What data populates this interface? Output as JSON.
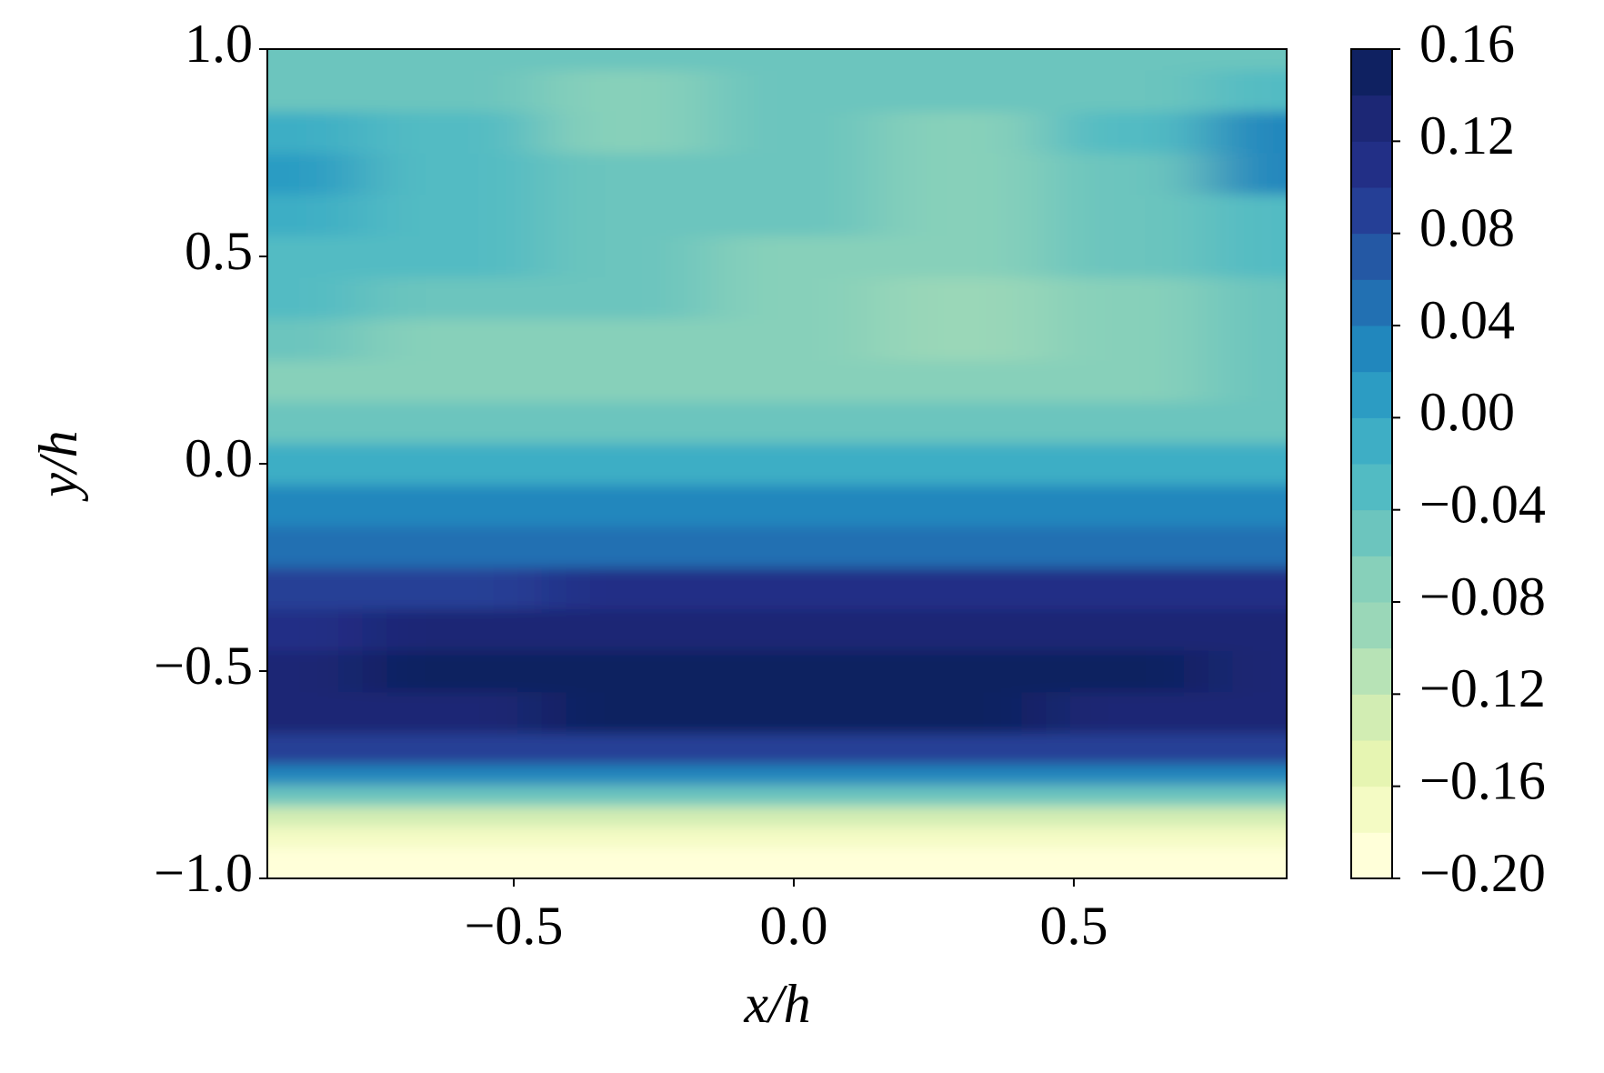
{
  "chart_data": {
    "type": "contourf",
    "xlabel": "x/h",
    "ylabel": "y/h",
    "xlim": [
      -0.94,
      0.88
    ],
    "ylim": [
      -1,
      1
    ],
    "xticks": [
      {
        "value": -0.5,
        "label": "−0.5"
      },
      {
        "value": 0,
        "label": "0.0"
      },
      0.5
    ],
    "yticks": [
      {
        "value": -1,
        "label": "−1.0"
      },
      {
        "value": -0.5,
        "label": "−0.5"
      },
      {
        "value": 0,
        "label": "0.0"
      },
      0.5,
      {
        "value": 1,
        "label": "1.0"
      }
    ],
    "x": [
      -0.94,
      -0.6,
      -0.3,
      0,
      0.3,
      0.6,
      0.88
    ],
    "y": [
      -1,
      -0.95,
      -0.9,
      -0.85,
      -0.8,
      -0.75,
      -0.7,
      -0.6,
      -0.5,
      -0.4,
      -0.3,
      -0.2,
      -0.1,
      0,
      0.1,
      0.2,
      0.3,
      0.4,
      0.5,
      0.6,
      0.7,
      0.8,
      0.9,
      1
    ],
    "z": [
      [
        -0.19,
        -0.19,
        -0.19,
        -0.19,
        -0.19,
        -0.19,
        -0.19
      ],
      [
        -0.19,
        -0.19,
        -0.19,
        -0.19,
        -0.19,
        -0.19,
        -0.19
      ],
      [
        -0.17,
        -0.17,
        -0.17,
        -0.17,
        -0.17,
        -0.17,
        -0.17
      ],
      [
        -0.13,
        -0.13,
        -0.13,
        -0.13,
        -0.13,
        -0.13,
        -0.13
      ],
      [
        -0.06,
        -0.06,
        -0.06,
        -0.06,
        -0.06,
        -0.06,
        -0.06
      ],
      [
        0.02,
        0.02,
        0.02,
        0.02,
        0.02,
        0.02,
        0.02
      ],
      [
        0.09,
        0.09,
        0.09,
        0.09,
        0.09,
        0.09,
        0.09
      ],
      [
        0.13,
        0.13,
        0.14,
        0.14,
        0.14,
        0.13,
        0.13
      ],
      [
        0.13,
        0.14,
        0.15,
        0.15,
        0.15,
        0.14,
        0.13
      ],
      [
        0.11,
        0.12,
        0.12,
        0.13,
        0.13,
        0.13,
        0.12
      ],
      [
        0.09,
        0.09,
        0.1,
        0.1,
        0.1,
        0.1,
        0.1
      ],
      [
        0.05,
        0.05,
        0.05,
        0.05,
        0.05,
        0.05,
        0.05
      ],
      [
        0.02,
        0.02,
        0.02,
        0.02,
        0.02,
        0.02,
        0.02
      ],
      [
        -0.02,
        -0.02,
        -0.02,
        -0.02,
        -0.02,
        -0.02,
        -0.02
      ],
      [
        -0.05,
        -0.05,
        -0.05,
        -0.05,
        -0.05,
        -0.05,
        -0.05
      ],
      [
        -0.07,
        -0.075,
        -0.075,
        -0.07,
        -0.07,
        -0.065,
        -0.06
      ],
      [
        -0.06,
        -0.07,
        -0.07,
        -0.08,
        -0.09,
        -0.08,
        -0.06
      ],
      [
        -0.04,
        -0.05,
        -0.06,
        -0.08,
        -0.09,
        -0.07,
        -0.05
      ],
      [
        -0.03,
        -0.04,
        -0.06,
        -0.07,
        -0.08,
        -0.06,
        -0.04
      ],
      [
        -0.02,
        -0.03,
        -0.06,
        -0.06,
        -0.07,
        -0.06,
        -0.03
      ],
      [
        0.01,
        -0.03,
        -0.06,
        -0.06,
        -0.07,
        -0.05,
        0.02
      ],
      [
        -0.01,
        -0.04,
        -0.07,
        -0.06,
        -0.07,
        -0.03,
        0.02
      ],
      [
        -0.05,
        -0.06,
        -0.07,
        -0.06,
        -0.06,
        -0.05,
        -0.03
      ],
      [
        -0.05,
        -0.05,
        -0.05,
        -0.05,
        -0.05,
        -0.05,
        -0.05
      ]
    ],
    "clim": [
      -0.2,
      0.16
    ],
    "cticks": [
      {
        "value": -0.2,
        "label": "−0.20"
      },
      {
        "value": -0.16,
        "label": "−0.16"
      },
      {
        "value": -0.12,
        "label": "−0.12"
      },
      {
        "value": -0.08,
        "label": "−0.08"
      },
      {
        "value": -0.04,
        "label": "−0.04"
      },
      {
        "value": 0,
        "label": "0.00"
      },
      0.04,
      0.08,
      0.12,
      0.16
    ],
    "colors": [
      "#ffffd9",
      "#f4fbc4",
      "#e6f5b2",
      "#d2edb3",
      "#b7e3b6",
      "#9ad7b8",
      "#87d0ba",
      "#6cc5be",
      "#52bbc3",
      "#3eaec5",
      "#2c9cc3",
      "#2187bd",
      "#2270b2",
      "#2458a4",
      "#253f96",
      "#222f86",
      "#1c2775",
      "#0f2161"
    ]
  }
}
